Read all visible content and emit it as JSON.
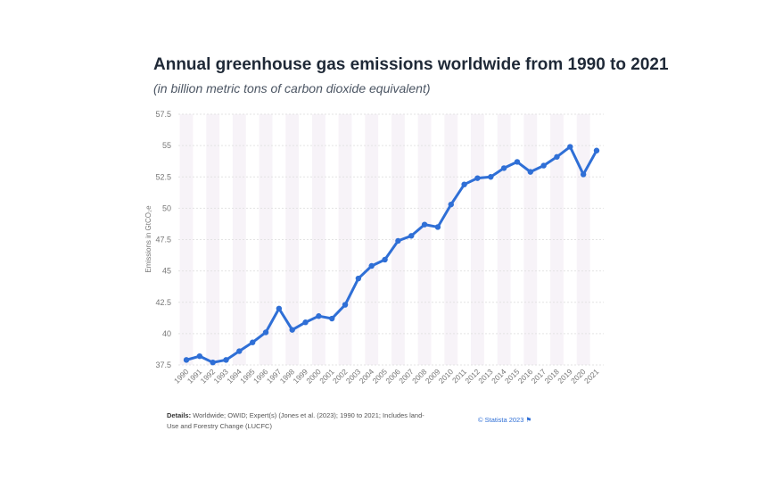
{
  "chart_data": {
    "type": "line",
    "title": "Annual greenhouse gas emissions worldwide from 1990 to 2021",
    "subtitle": "(in billion metric tons of carbon dioxide equivalent)",
    "ylabel": "Emissions in GtCO₂e",
    "xlabel": "",
    "ylim": [
      37.5,
      57.5
    ],
    "yticks": [
      "37.5",
      "40",
      "42.5",
      "45",
      "47.5",
      "50",
      "52.5",
      "55",
      "57.5"
    ],
    "categories": [
      "1990",
      "1991",
      "1992",
      "1993",
      "1994",
      "1995",
      "1996",
      "1997",
      "1998",
      "1999",
      "2000",
      "2001",
      "2002",
      "2003",
      "2004",
      "2005",
      "2006",
      "2007",
      "2008",
      "2009",
      "2010",
      "2011",
      "2012",
      "2013",
      "2014",
      "2015",
      "2016",
      "2017",
      "2018",
      "2019",
      "2020",
      "2021"
    ],
    "series": [
      {
        "values": [
          37.9,
          38.2,
          37.7,
          37.9,
          38.6,
          39.3,
          40.1,
          42.0,
          40.3,
          40.9,
          41.4,
          41.2,
          42.3,
          44.4,
          45.4,
          45.9,
          47.4,
          47.8,
          48.7,
          48.5,
          50.3,
          51.9,
          52.4,
          52.5,
          53.2,
          53.7,
          52.9,
          53.4,
          54.1,
          54.9,
          52.7,
          54.6
        ],
        "color": "#2f6fd6"
      }
    ],
    "grid": true,
    "legend": "none"
  },
  "footer": {
    "details_label": "Details:",
    "details_text": "Worldwide; OWID; Expert(s) (Jones et al. (2023); 1990 to 2021; Includes land-Use and Forestry Change (LUCFC)",
    "credit": "© Statista 2023"
  }
}
